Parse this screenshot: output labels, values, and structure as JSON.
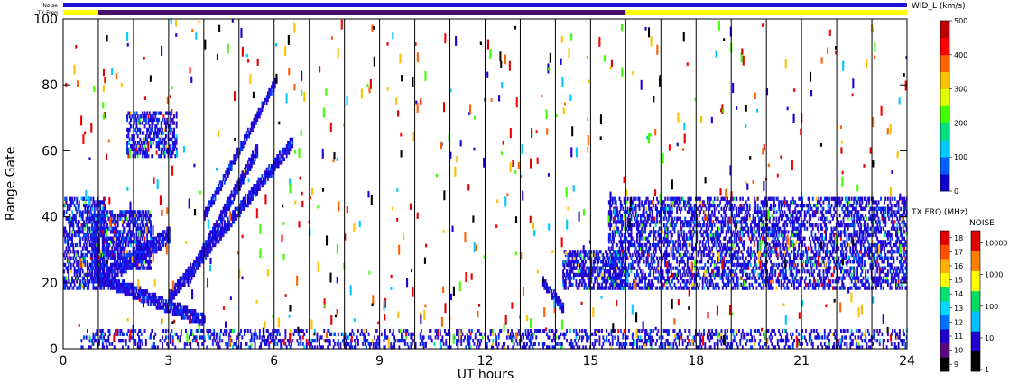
{
  "top_strips": {
    "noise_label": "Noise",
    "txfreq_label": "TX Freq",
    "noise_color": "#1f12d6",
    "txfreq_colors": [
      "#ffff00",
      "#4a0e6b"
    ]
  },
  "chart_data": {
    "type": "heatmap",
    "xlabel": "UT hours",
    "ylabel": "Range Gate",
    "xlim": [
      0,
      24
    ],
    "ylim": [
      0,
      100
    ],
    "x_ticks": [
      "0",
      "3",
      "6",
      "9",
      "12",
      "15",
      "18",
      "21",
      "24"
    ],
    "y_ticks": [
      "0",
      "20",
      "40",
      "60",
      "80",
      "100"
    ],
    "hour_gridlines": [
      1,
      2,
      3,
      4,
      5,
      6,
      7,
      8,
      9,
      10,
      11,
      12,
      13,
      14,
      15,
      16,
      17,
      18,
      19,
      20,
      21,
      22,
      23
    ],
    "txfreq_segments": [
      {
        "from": 0,
        "to": 1,
        "band": "yellow"
      },
      {
        "from": 1,
        "to": 16,
        "band": "purple"
      },
      {
        "from": 16,
        "to": 24,
        "band": "yellow"
      }
    ],
    "scatter_regions": [
      {
        "x": [
          0,
          1.2
        ],
        "y": [
          18,
          46
        ],
        "density": 0.55
      },
      {
        "x": [
          0.8,
          2.5
        ],
        "y": [
          24,
          42
        ],
        "density": 0.6
      },
      {
        "x": [
          1.8,
          3.2
        ],
        "y": [
          58,
          72
        ],
        "density": 0.5
      },
      {
        "x": [
          15.5,
          24
        ],
        "y": [
          18,
          46
        ],
        "density": 0.45
      },
      {
        "x": [
          14.2,
          16
        ],
        "y": [
          18,
          30
        ],
        "density": 0.6
      },
      {
        "x": [
          0.5,
          24
        ],
        "y": [
          0,
          6
        ],
        "density": 0.3
      }
    ],
    "bands": [
      {
        "x": [
          0.8,
          4
        ],
        "y": [
          22,
          8
        ],
        "width": 3
      },
      {
        "x": [
          1,
          3
        ],
        "y": [
          20,
          34
        ],
        "width": 4
      },
      {
        "x": [
          3,
          6.5
        ],
        "y": [
          15,
          62
        ],
        "width": 3
      },
      {
        "x": [
          3.5,
          5.5
        ],
        "y": [
          20,
          60
        ],
        "width": 3
      },
      {
        "x": [
          4,
          6
        ],
        "y": [
          40,
          80
        ],
        "width": 2
      },
      {
        "x": [
          13.6,
          14.2
        ],
        "y": [
          20,
          12
        ],
        "width": 2
      }
    ],
    "colorbars": [
      {
        "title": "WID_L (km/s)",
        "ticks": [
          "0",
          "100",
          "200",
          "300",
          "400",
          "500"
        ],
        "colors": [
          "#1000d0",
          "#0060ff",
          "#00c8ff",
          "#00e080",
          "#40ff00",
          "#e0ff00",
          "#ffc000",
          "#ff6000",
          "#ff0000",
          "#c00000"
        ]
      },
      {
        "title": "TX FRQ (MHz)",
        "ticks": [
          "9",
          "10",
          "11",
          "12",
          "13",
          "14",
          "15",
          "16",
          "17",
          "18"
        ],
        "colors": [
          "#000000",
          "#5a0a7a",
          "#2000d0",
          "#0070ff",
          "#00d8ff",
          "#00e070",
          "#ffff00",
          "#ffb000",
          "#ff5000",
          "#e00000"
        ]
      },
      {
        "title": "NOISE",
        "ticks": [
          "1",
          "10",
          "100",
          "1000",
          "10000"
        ],
        "colors": [
          "#000000",
          "#2000d0",
          "#00c0ff",
          "#00e060",
          "#ffff00",
          "#ff8000",
          "#e00000"
        ]
      }
    ]
  }
}
